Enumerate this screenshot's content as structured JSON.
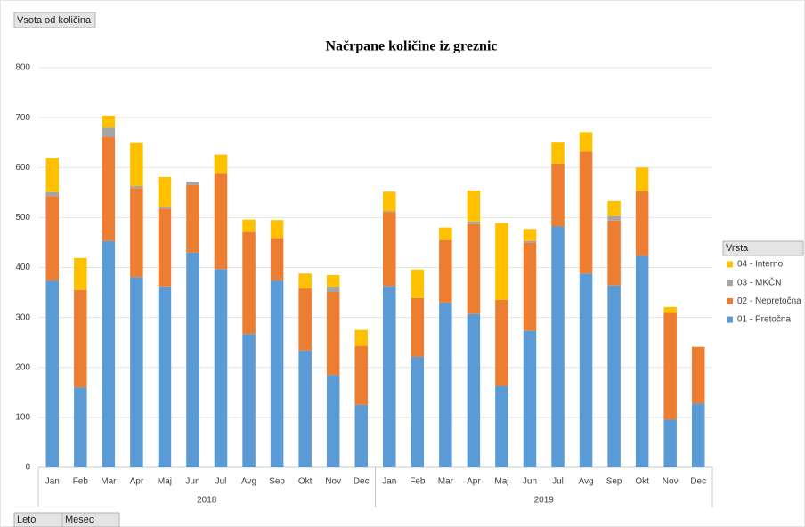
{
  "chart_data": {
    "type": "stacked_bar",
    "title": "Načrpane količine iz greznic",
    "value_field": "Vsota od količina",
    "axis_fields": [
      "Leto",
      "Mesec"
    ],
    "legend_title": "Vrsta",
    "category_groups": [
      "2018",
      "2019"
    ],
    "categories": [
      "Jan",
      "Feb",
      "Mar",
      "Apr",
      "Maj",
      "Jun",
      "Jul",
      "Avg",
      "Sep",
      "Okt",
      "Nov",
      "Dec",
      "Jan",
      "Feb",
      "Mar",
      "Apr",
      "Maj",
      "Jun",
      "Jul",
      "Avg",
      "Sep",
      "Okt",
      "Nov",
      "Dec"
    ],
    "series": [
      {
        "name": "01 - Pretočna",
        "color": "#5b9bd5",
        "values": [
          374,
          160,
          453,
          381,
          362,
          430,
          397,
          267,
          374,
          234,
          185,
          125,
          363,
          221,
          330,
          307,
          163,
          273,
          482,
          388,
          364,
          423,
          96,
          128
        ]
      },
      {
        "name": "02 - Nepretočna",
        "color": "#ed7d31",
        "values": [
          169,
          195,
          208,
          178,
          156,
          135,
          192,
          204,
          85,
          124,
          166,
          118,
          148,
          118,
          125,
          180,
          172,
          176,
          126,
          244,
          130,
          130,
          213,
          113
        ]
      },
      {
        "name": "03 - MKČN",
        "color": "#a5a5a5",
        "values": [
          8,
          0,
          19,
          4,
          4,
          7,
          0,
          0,
          0,
          0,
          11,
          0,
          2,
          0,
          0,
          5,
          0,
          4,
          0,
          0,
          9,
          0,
          0,
          0
        ]
      },
      {
        "name": "04 - Interno",
        "color": "#ffc000",
        "values": [
          68,
          64,
          24,
          86,
          59,
          0,
          37,
          25,
          36,
          30,
          23,
          32,
          39,
          57,
          25,
          62,
          154,
          24,
          42,
          39,
          30,
          47,
          12,
          0
        ]
      }
    ],
    "ylim": [
      0,
      800
    ],
    "yticks": [
      0,
      100,
      200,
      300,
      400,
      500,
      600,
      700,
      800
    ],
    "grid": true
  }
}
